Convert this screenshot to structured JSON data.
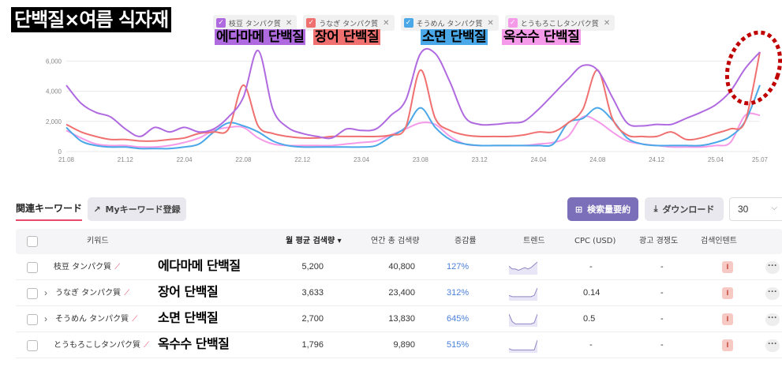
{
  "page_title": "단백질×여름 식자재",
  "legend": [
    {
      "label": "枝豆 タンパク質",
      "color": "#b06ae0",
      "overlay": "에다마메 단백질",
      "overlay_color": "#b06ae0"
    },
    {
      "label": "うなぎ タンパク質",
      "color": "#f07070",
      "overlay": "장어 단백질",
      "overlay_color": "#f07070"
    },
    {
      "label": "そうめん タンパク質",
      "color": "#4aa8e8",
      "overlay": "소면 단백질",
      "overlay_color": "#4aa8e8"
    },
    {
      "label": "とうもろこしタンパク質",
      "color": "#f59ae8",
      "overlay": "옥수수 단백질",
      "overlay_color": "#f59ae8"
    }
  ],
  "chart_data": {
    "type": "line",
    "x": [
      "21.08",
      "21.09",
      "21.10",
      "21.11",
      "21.12",
      "22.01",
      "22.02",
      "22.03",
      "22.04",
      "22.05",
      "22.06",
      "22.07",
      "22.08",
      "22.09",
      "22.10",
      "22.11",
      "22.12",
      "23.01",
      "23.02",
      "23.03",
      "23.04",
      "23.05",
      "23.06",
      "23.07",
      "23.08",
      "23.09",
      "23.10",
      "23.11",
      "23.12",
      "24.01",
      "24.02",
      "24.03",
      "24.04",
      "24.05",
      "24.06",
      "24.07",
      "24.08",
      "24.09",
      "24.10",
      "24.11",
      "24.12",
      "25.01",
      "25.02",
      "25.03",
      "25.04",
      "25.05",
      "25.06",
      "25.07"
    ],
    "x_ticks": [
      "21.08",
      "21.12",
      "22.04",
      "22.08",
      "22.12",
      "23.04",
      "23.08",
      "23.12",
      "24.04",
      "24.08",
      "24.12",
      "25.04",
      "25.07"
    ],
    "y_ticks": [
      "0",
      "2,000",
      "4,000",
      "6,000"
    ],
    "ylim": [
      0,
      6700
    ],
    "series": [
      {
        "name": "枝豆 タンパク質",
        "color": "#b06ae0",
        "values": [
          4400,
          3200,
          2600,
          2300,
          1500,
          1000,
          1600,
          1300,
          1600,
          1300,
          1500,
          2300,
          3600,
          6700,
          2800,
          1600,
          1200,
          1000,
          900,
          1500,
          1400,
          1500,
          2400,
          3400,
          6500,
          6500,
          4600,
          2300,
          1800,
          1800,
          1900,
          2000,
          2800,
          3800,
          4800,
          5700,
          5400,
          3600,
          1900,
          1700,
          1800,
          1800,
          2200,
          2600,
          3100,
          4000,
          5500,
          6600
        ]
      },
      {
        "name": "うなぎ タンパク質",
        "color": "#f07070",
        "values": [
          1800,
          1300,
          1000,
          800,
          800,
          700,
          700,
          800,
          900,
          1200,
          1300,
          1500,
          4400,
          1700,
          1200,
          1000,
          900,
          900,
          1000,
          1000,
          1000,
          1000,
          1100,
          1600,
          5400,
          2200,
          1400,
          1100,
          1000,
          1000,
          1000,
          1100,
          1300,
          1300,
          1900,
          2800,
          5400,
          2200,
          1100,
          1000,
          1000,
          1300,
          800,
          900,
          1200,
          1500,
          2000,
          6600
        ]
      },
      {
        "name": "そうめん タンパク質",
        "color": "#4aa8e8",
        "values": [
          1600,
          700,
          400,
          300,
          300,
          200,
          200,
          200,
          300,
          500,
          1300,
          1900,
          1700,
          1300,
          700,
          400,
          300,
          300,
          300,
          300,
          300,
          400,
          1000,
          1600,
          2900,
          1600,
          800,
          500,
          400,
          400,
          400,
          400,
          400,
          500,
          1900,
          2200,
          2900,
          2100,
          900,
          500,
          400,
          400,
          400,
          400,
          600,
          1000,
          2000,
          4400
        ]
      },
      {
        "name": "とうもろこしタンパク質",
        "color": "#f59ae8",
        "values": [
          1400,
          900,
          500,
          400,
          400,
          300,
          300,
          400,
          600,
          900,
          1400,
          1600,
          1600,
          900,
          500,
          400,
          400,
          400,
          400,
          500,
          600,
          700,
          1100,
          1500,
          1900,
          1800,
          1000,
          500,
          400,
          400,
          400,
          400,
          500,
          600,
          1000,
          2300,
          2000,
          1300,
          700,
          500,
          400,
          300,
          300,
          300,
          400,
          600,
          2400,
          2400
        ]
      }
    ]
  },
  "toolbar": {
    "tab_label": "関連キーワード",
    "my_keyword_button": "Myキーワード登録",
    "summary_button": "検索量要約",
    "download_button": "ダウンロード",
    "page_size": "30"
  },
  "table": {
    "headers": {
      "keyword": "키워드",
      "monthly_avg": "월 평균 검색량 ▾",
      "yearly_total": "연간 총 검색량",
      "change": "증감률",
      "trend": "트렌드",
      "cpc": "CPC (USD)",
      "competition": "광고 경쟁도",
      "intent": "검색인텐트"
    },
    "rows": [
      {
        "keyword": "枝豆 タンパク質",
        "overlay": "에다마메 단백질",
        "expandable": false,
        "monthly": "5,200",
        "yearly": "40,800",
        "change": "127%",
        "cpc": "-",
        "competition": "-",
        "intent": "I",
        "spark": [
          5,
          3,
          3,
          2,
          3,
          4,
          3,
          4,
          6,
          8
        ]
      },
      {
        "keyword": "うなぎ タンパク質",
        "overlay": "장어 단백질",
        "expandable": true,
        "monthly": "3,633",
        "yearly": "23,400",
        "change": "312%",
        "cpc": "0.14",
        "competition": "-",
        "intent": "I",
        "spark": [
          3,
          2,
          2,
          2,
          2,
          2,
          2,
          2,
          3,
          9
        ]
      },
      {
        "keyword": "そうめん タンパク質",
        "overlay": "소면 단백질",
        "expandable": true,
        "monthly": "2,700",
        "yearly": "13,830",
        "change": "645%",
        "cpc": "0.5",
        "competition": "-",
        "intent": "I",
        "spark": [
          9,
          3,
          1,
          1,
          1,
          1,
          1,
          1,
          2,
          9
        ]
      },
      {
        "keyword": "とうもろこしタンパク質",
        "overlay": "옥수수 단백질",
        "expandable": false,
        "monthly": "1,796",
        "yearly": "9,890",
        "change": "515%",
        "cpc": "-",
        "competition": "-",
        "intent": "I",
        "spark": [
          2,
          1,
          1,
          1,
          1,
          1,
          1,
          1,
          1,
          9
        ]
      }
    ]
  }
}
